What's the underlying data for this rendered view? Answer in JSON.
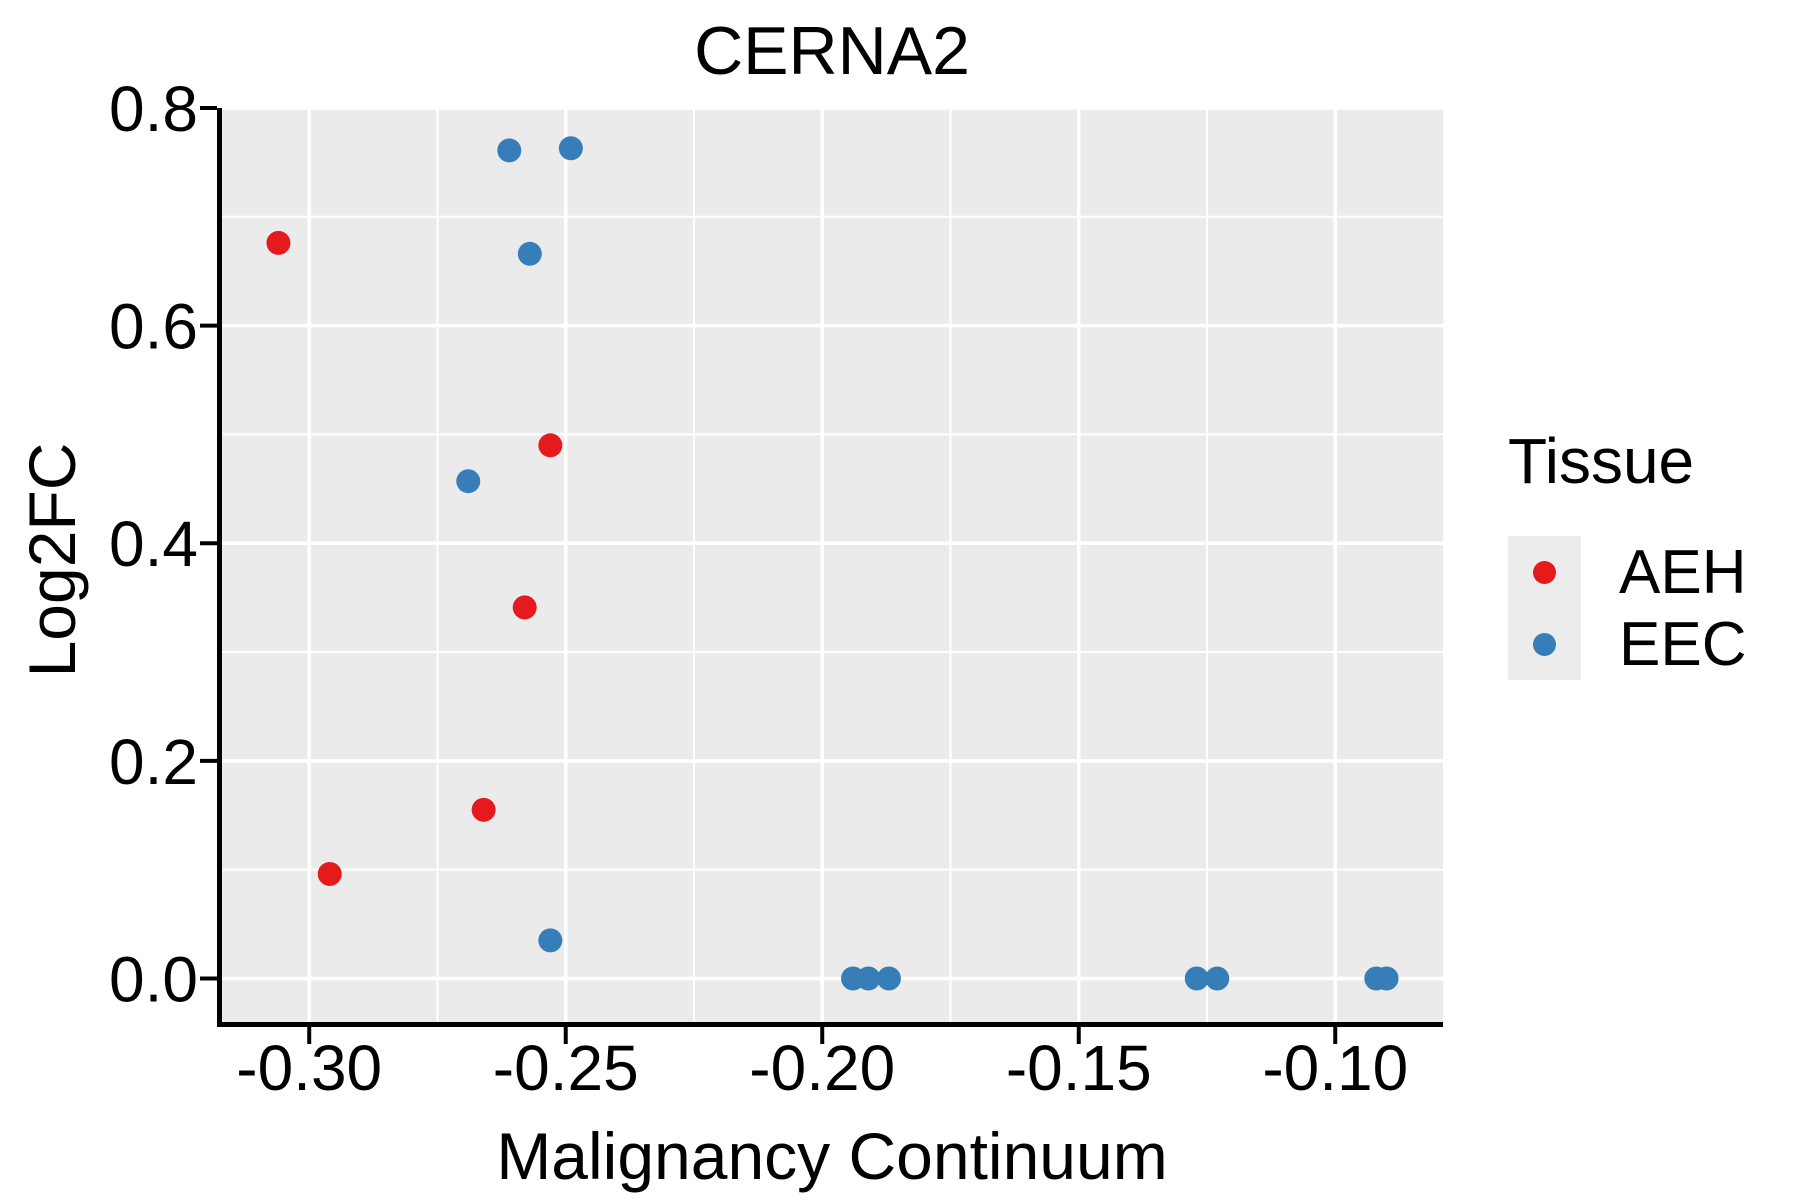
{
  "title": "CERNA2",
  "legend": {
    "title": "Tissue",
    "items": [
      {
        "label": "AEH",
        "color": "#E41A1C"
      },
      {
        "label": "EEC",
        "color": "#377EB8"
      }
    ]
  },
  "chart_data": {
    "type": "scatter",
    "title": "CERNA2",
    "xlabel": "Malignancy Continuum",
    "ylabel": "Log2FC",
    "xlim": [
      -0.317,
      -0.079
    ],
    "ylim": [
      -0.04,
      0.8
    ],
    "x_ticks": [
      -0.3,
      -0.25,
      -0.2,
      -0.15,
      -0.1
    ],
    "x_tick_labels": [
      "-0.30",
      "-0.25",
      "-0.20",
      "-0.15",
      "-0.10"
    ],
    "x_minor_ticks": [
      -0.275,
      -0.225,
      -0.175,
      -0.125
    ],
    "y_ticks": [
      0.0,
      0.2,
      0.4,
      0.6,
      0.8
    ],
    "y_tick_labels": [
      "0.0",
      "0.2",
      "0.4",
      "0.6",
      "0.8"
    ],
    "y_minor_ticks": [
      0.1,
      0.3,
      0.5,
      0.7
    ],
    "grid": true,
    "legend_position": "right",
    "legend_title": "Tissue",
    "series": [
      {
        "name": "AEH",
        "color": "#E41A1C",
        "points": [
          [
            -0.306,
            0.676
          ],
          [
            -0.253,
            0.49
          ],
          [
            -0.258,
            0.341
          ],
          [
            -0.266,
            0.155
          ],
          [
            -0.296,
            0.096
          ]
        ]
      },
      {
        "name": "EEC",
        "color": "#377EB8",
        "points": [
          [
            -0.261,
            0.761
          ],
          [
            -0.249,
            0.763
          ],
          [
            -0.257,
            0.666
          ],
          [
            -0.269,
            0.457
          ],
          [
            -0.253,
            0.035
          ],
          [
            -0.194,
            0.0
          ],
          [
            -0.191,
            0.0
          ],
          [
            -0.187,
            0.0
          ],
          [
            -0.127,
            0.0
          ],
          [
            -0.123,
            0.0
          ],
          [
            -0.092,
            0.0
          ],
          [
            -0.09,
            0.0
          ]
        ]
      }
    ],
    "styles": {
      "panel_bg": "#EBEBEB",
      "grid_color": "#FFFFFF",
      "axis_color": "#000000",
      "text_color": "#000000",
      "point_radius": 12
    }
  }
}
